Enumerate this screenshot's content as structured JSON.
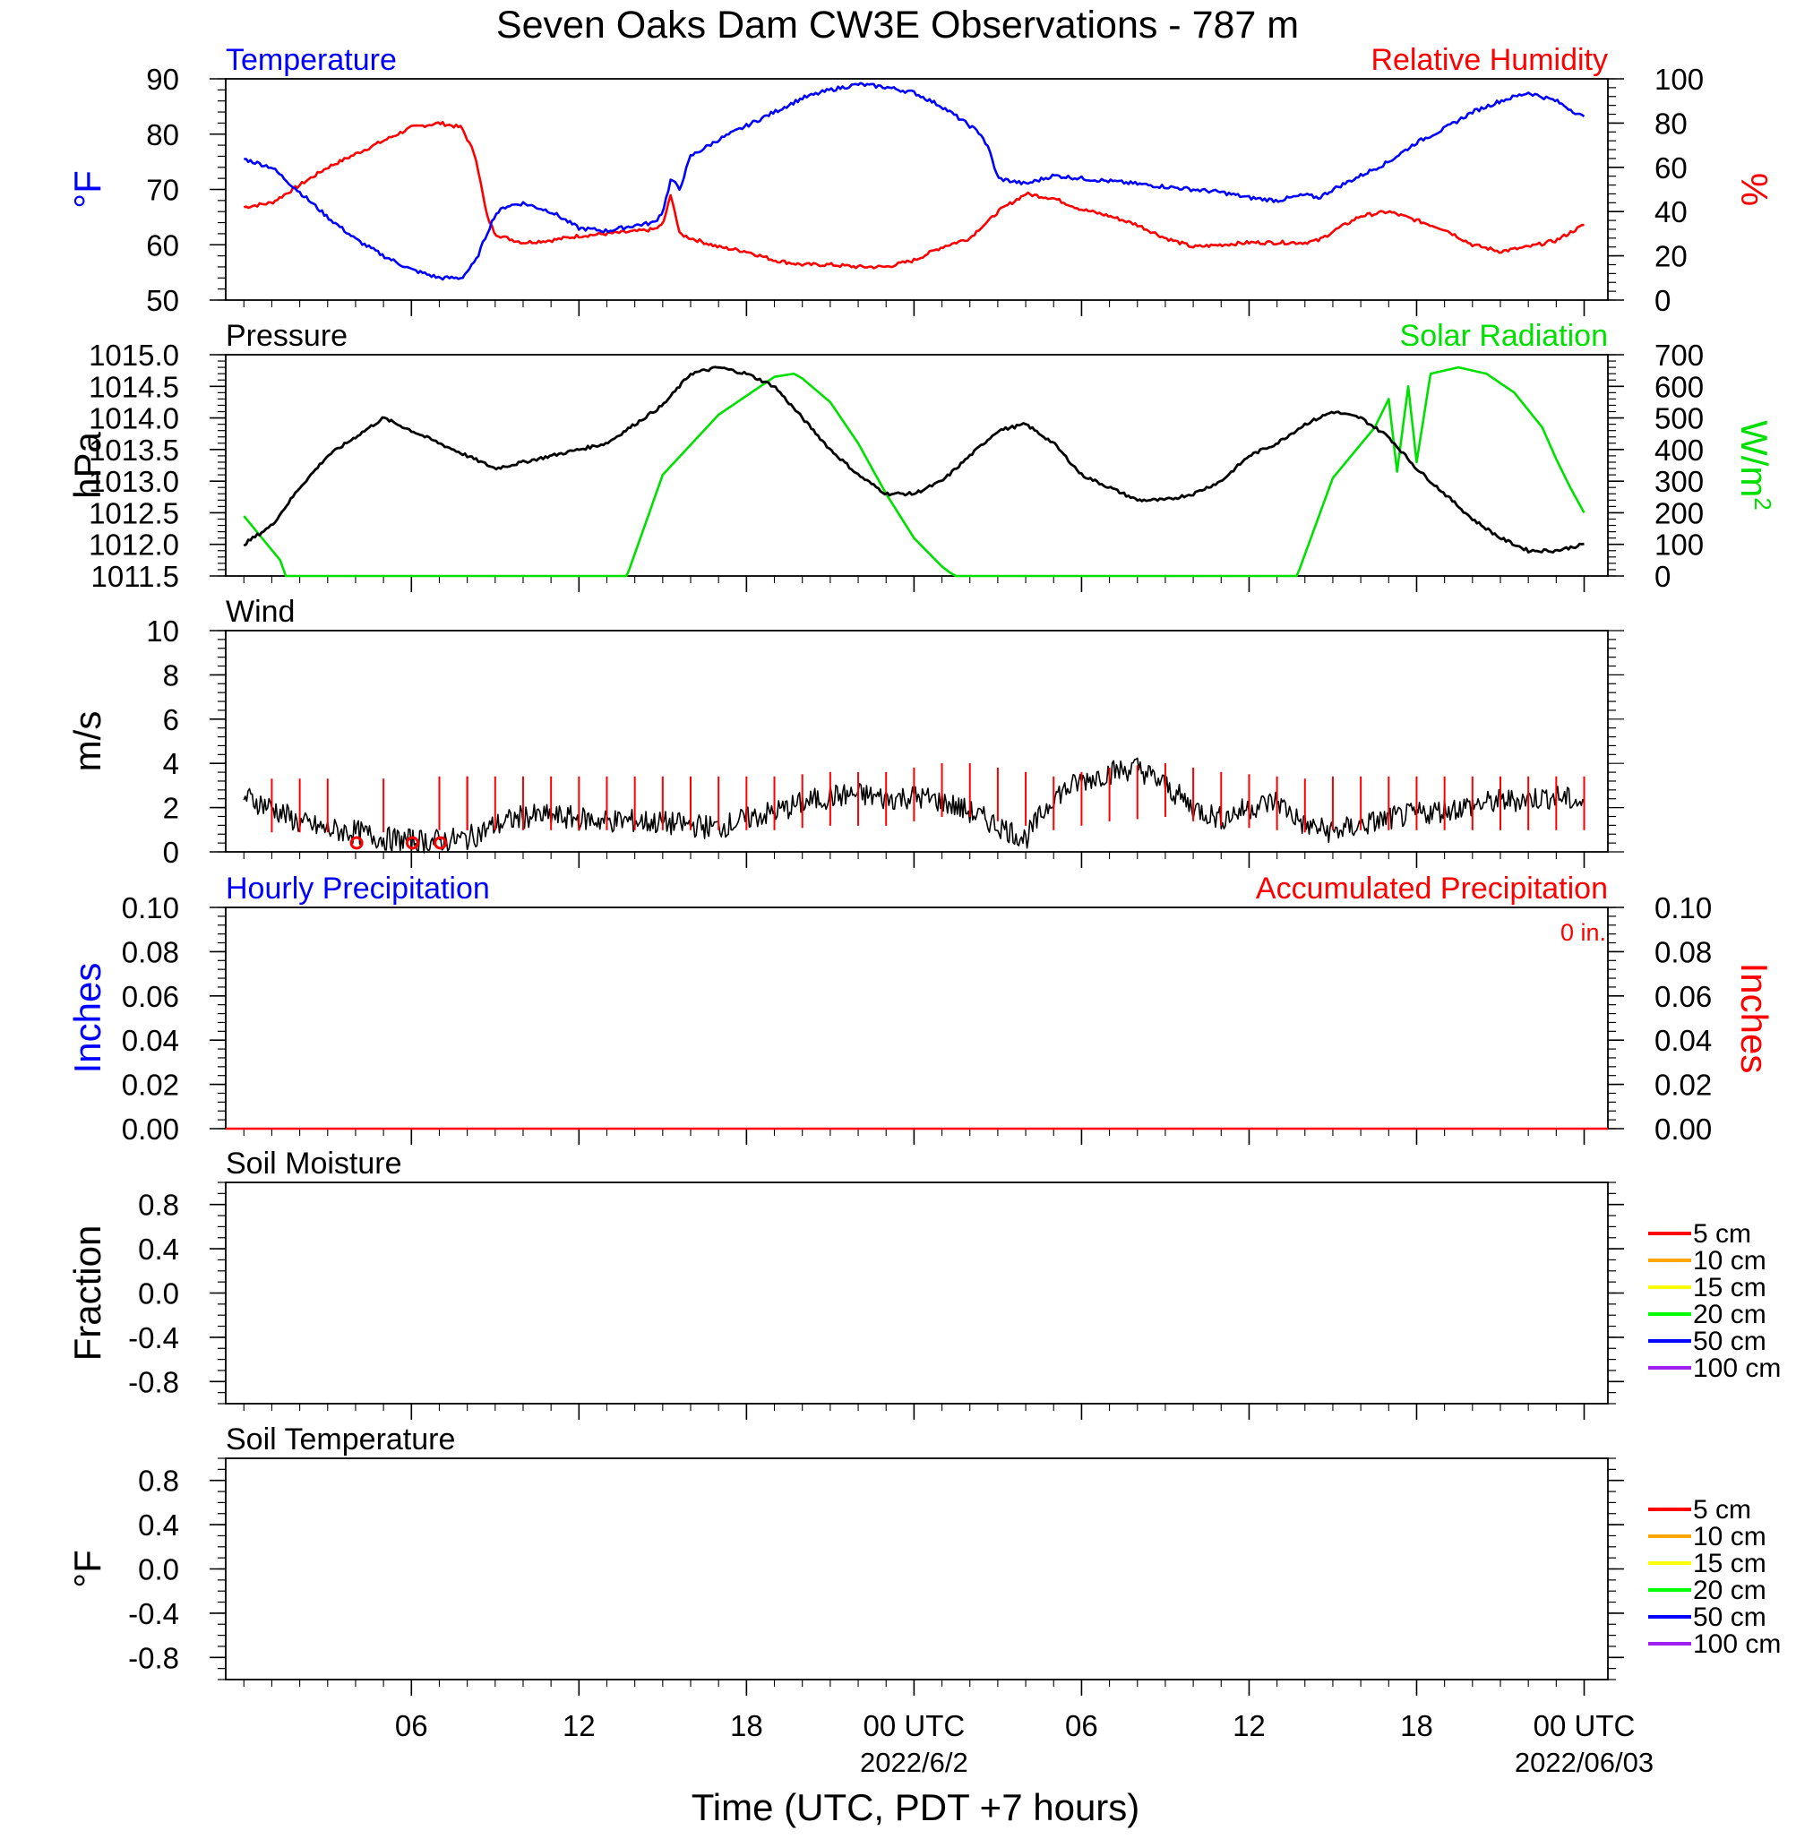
{
  "title": "Seven Oaks Dam CW3E Observations - 787 m",
  "x_axis": {
    "label": "Time (UTC, PDT +7 hours)",
    "ticks": [
      "06",
      "12",
      "18",
      "00 UTC",
      "06",
      "12",
      "18",
      "00 UTC"
    ],
    "dates": [
      "2022/6/2",
      "2022/06/03"
    ]
  },
  "colors": {
    "temperature": "#0000ff",
    "humidity": "#ff0000",
    "pressure": "#000000",
    "solar": "#00e000",
    "wind": "#000000",
    "barbs": "#ff0000",
    "legend": [
      "#ff0000",
      "#ffa500",
      "#ffff00",
      "#00ff00",
      "#0000ff",
      "#a020f0"
    ]
  },
  "chart_data": [
    {
      "type": "line",
      "panel": "temperature-humidity",
      "left_title": "Temperature",
      "right_title": "Relative Humidity",
      "left_unit": "°F",
      "right_unit": "%",
      "left_ticks": [
        "90",
        "80",
        "70",
        "60",
        "50"
      ],
      "right_ticks": [
        "100",
        "80",
        "60",
        "40",
        "20",
        "0"
      ],
      "ylim_left": [
        50,
        90
      ],
      "ylim_right": [
        0,
        100
      ],
      "x_hours": [
        0,
        1,
        2,
        3,
        4,
        5,
        6,
        7,
        7.8,
        8.3,
        8.7,
        9,
        9.4,
        10,
        11,
        12,
        13,
        14,
        14.7,
        15,
        15.3,
        15.6,
        16,
        17,
        18,
        19,
        20,
        21,
        22,
        23,
        24,
        25,
        26,
        26.4,
        26.7,
        27,
        28,
        29,
        30,
        31,
        32,
        33,
        34,
        35,
        36,
        37,
        38,
        38.5,
        39,
        40,
        41,
        42,
        43,
        44,
        45,
        46,
        47,
        48
      ],
      "series": [
        {
          "name": "Temperature",
          "axis": "left",
          "values": [
            75.5,
            74,
            69.5,
            65,
            61,
            58,
            55.5,
            54,
            54,
            57,
            62,
            65.5,
            67,
            67.5,
            66,
            63,
            62.5,
            63.5,
            64,
            66,
            72,
            70,
            76,
            79,
            81.5,
            84,
            86.5,
            88,
            89,
            88.5,
            87.5,
            85,
            81.5,
            80,
            77,
            72,
            71,
            72.5,
            72,
            71.5,
            71,
            70.5,
            70,
            69.5,
            68.5,
            68,
            69,
            68.5,
            70,
            72.5,
            75,
            78.5,
            81,
            84,
            86,
            87.5,
            86,
            83
          ]
        },
        {
          "name": "Relative Humidity",
          "axis": "right",
          "values": [
            42,
            44,
            52,
            60,
            66,
            72,
            78,
            80,
            78,
            65,
            38,
            30,
            28,
            26,
            27,
            29,
            30,
            31,
            32,
            34,
            48,
            30,
            28,
            24,
            22,
            18,
            16,
            16,
            15,
            15,
            18,
            24,
            28,
            33,
            36,
            40,
            48,
            46,
            41,
            38,
            34,
            28,
            24,
            25,
            26,
            26,
            26,
            27,
            31,
            38,
            40,
            36,
            32,
            25,
            22,
            24,
            27,
            34
          ]
        }
      ]
    },
    {
      "type": "line",
      "panel": "pressure-solar",
      "left_title": "Pressure",
      "right_title": "Solar Radiation",
      "left_unit": "hPa",
      "right_unit": "W/m",
      "right_unit_sup": "2",
      "left_ticks": [
        "1015.0",
        "1014.5",
        "1014.0",
        "1013.5",
        "1013.0",
        "1012.5",
        "1012.0",
        "1011.5"
      ],
      "right_ticks": [
        "700",
        "600",
        "500",
        "400",
        "300",
        "200",
        "100",
        "0"
      ],
      "ylim_left": [
        1011.5,
        1015.0
      ],
      "ylim_right": [
        0,
        700
      ],
      "series": [
        {
          "name": "Pressure",
          "axis": "left",
          "x": [
            0,
            1,
            2,
            3,
            4,
            5,
            6,
            7,
            8,
            9,
            10,
            11,
            12,
            13,
            14,
            15,
            16,
            17,
            18,
            19,
            20,
            21,
            22,
            23,
            24,
            25,
            26,
            27,
            28,
            29,
            30,
            31,
            32,
            33,
            34,
            35,
            36,
            37,
            38,
            39,
            40,
            41,
            42,
            43,
            44,
            45,
            46,
            47,
            48
          ],
          "values": [
            1012.0,
            1012.3,
            1012.9,
            1013.4,
            1013.7,
            1014.0,
            1013.8,
            1013.6,
            1013.4,
            1013.2,
            1013.3,
            1013.4,
            1013.5,
            1013.6,
            1013.9,
            1014.2,
            1014.7,
            1014.8,
            1014.7,
            1014.5,
            1014.0,
            1013.5,
            1013.1,
            1012.8,
            1012.8,
            1013.0,
            1013.4,
            1013.8,
            1013.9,
            1013.6,
            1013.1,
            1012.9,
            1012.7,
            1012.7,
            1012.8,
            1013.0,
            1013.4,
            1013.6,
            1013.9,
            1014.1,
            1014.0,
            1013.7,
            1013.2,
            1012.8,
            1012.4,
            1012.1,
            1011.9,
            1011.9,
            1012.0
          ]
        },
        {
          "name": "Solar Radiation",
          "axis": "right",
          "x": [
            0,
            1.3,
            1.5,
            13.7,
            13.8,
            15,
            17,
            19,
            19.7,
            20,
            21,
            22,
            23,
            24,
            25,
            25.3,
            25.5,
            37.7,
            37.8,
            39,
            40.5,
            41,
            41.3,
            41.7,
            42,
            42.5,
            43.5,
            44.5,
            45.5,
            46.5,
            47,
            47.5,
            48
          ],
          "values": [
            190,
            50,
            0,
            0,
            20,
            320,
            510,
            630,
            640,
            625,
            550,
            420,
            260,
            120,
            30,
            10,
            0,
            0,
            20,
            310,
            470,
            560,
            330,
            600,
            360,
            640,
            660,
            640,
            580,
            470,
            370,
            280,
            200
          ]
        }
      ]
    },
    {
      "type": "line",
      "panel": "wind",
      "left_title": "Wind",
      "left_unit": "m/s",
      "left_ticks": [
        "10",
        "8",
        "6",
        "4",
        "2",
        "0"
      ],
      "ylim": [
        0,
        10
      ],
      "series": [
        {
          "name": "Wind speed",
          "x": [
            0,
            1,
            2,
            3,
            4,
            5,
            6,
            7,
            8,
            9,
            10,
            11,
            12,
            13,
            14,
            15,
            16,
            17,
            18,
            19,
            20,
            21,
            22,
            23,
            24,
            25,
            26,
            27,
            28,
            29,
            30,
            31,
            32,
            33,
            34,
            35,
            36,
            37,
            38,
            39,
            40,
            41,
            42,
            43,
            44,
            45,
            46,
            47,
            48
          ],
          "values": [
            2.5,
            2.0,
            1.3,
            1.0,
            0.9,
            0.6,
            0.5,
            0.5,
            0.6,
            1.2,
            1.6,
            1.6,
            1.5,
            1.4,
            1.4,
            1.3,
            1.2,
            1.1,
            1.5,
            1.8,
            2.2,
            2.5,
            2.6,
            2.4,
            2.5,
            2.3,
            1.8,
            1.2,
            0.6,
            2.5,
            3.2,
            3.6,
            3.8,
            3.0,
            2.0,
            1.5,
            2.0,
            2.3,
            1.2,
            0.9,
            1.2,
            1.5,
            1.7,
            1.9,
            2.1,
            2.3,
            2.4,
            2.5,
            2.2
          ]
        },
        {
          "name": "Wind barbs",
          "x": [
            1,
            2,
            3,
            5,
            7,
            8,
            8,
            9,
            10,
            11,
            12,
            13,
            14,
            15,
            16,
            17,
            18,
            19,
            20,
            21,
            22,
            23,
            24,
            25,
            26,
            27,
            28,
            29,
            30,
            31,
            32,
            33,
            34,
            35,
            36,
            37,
            38,
            39,
            40,
            41,
            42,
            43,
            44,
            45,
            46,
            47,
            48
          ],
          "values": [
            2.5,
            2.5,
            2.5,
            2.5,
            2.6,
            2.6,
            2.6,
            2.6,
            2.6,
            2.6,
            2.6,
            2.6,
            2.6,
            2.6,
            2.6,
            2.6,
            2.6,
            2.6,
            2.7,
            2.8,
            2.8,
            2.8,
            3.0,
            3.2,
            3.2,
            3.0,
            2.8,
            2.6,
            2.8,
            3.0,
            3.1,
            3.2,
            3.0,
            2.8,
            2.7,
            2.6,
            2.5,
            2.6,
            2.6,
            2.6,
            2.6,
            2.6,
            2.6,
            2.6,
            2.6,
            2.6,
            2.6
          ]
        }
      ]
    },
    {
      "type": "line",
      "panel": "precipitation",
      "left_title": "Hourly Precipitation",
      "right_title": "Accumulated Precipitation",
      "annotation": "0 in.",
      "left_unit": "Inches",
      "right_unit": "Inches",
      "left_ticks": [
        "0.10",
        "0.08",
        "0.06",
        "0.04",
        "0.02",
        "0.00"
      ],
      "right_ticks": [
        "0.10",
        "0.08",
        "0.06",
        "0.04",
        "0.02",
        "0.00"
      ],
      "ylim": [
        0,
        0.1
      ],
      "series": [
        {
          "name": "Hourly Precipitation",
          "x": [
            0,
            48
          ],
          "values": [
            0,
            0
          ]
        },
        {
          "name": "Accumulated Precipitation",
          "x": [
            0,
            48
          ],
          "values": [
            0,
            0
          ]
        }
      ]
    },
    {
      "type": "line",
      "panel": "soil-moisture",
      "left_title": "Soil Moisture",
      "left_unit": "Fraction",
      "left_ticks": [
        "0.8",
        "0.4",
        "0.0",
        "-0.4",
        "-0.8"
      ],
      "ylim": [
        -1,
        1
      ],
      "legend": [
        "5 cm",
        "10 cm",
        "15 cm",
        "20 cm",
        "50 cm",
        "100 cm"
      ],
      "series": []
    },
    {
      "type": "line",
      "panel": "soil-temperature",
      "left_title": "Soil Temperature",
      "left_unit": "°F",
      "left_ticks": [
        "0.8",
        "0.4",
        "0.0",
        "-0.4",
        "-0.8"
      ],
      "ylim": [
        -1,
        1
      ],
      "legend": [
        "5 cm",
        "10 cm",
        "15 cm",
        "20 cm",
        "50 cm",
        "100 cm"
      ],
      "series": []
    }
  ]
}
